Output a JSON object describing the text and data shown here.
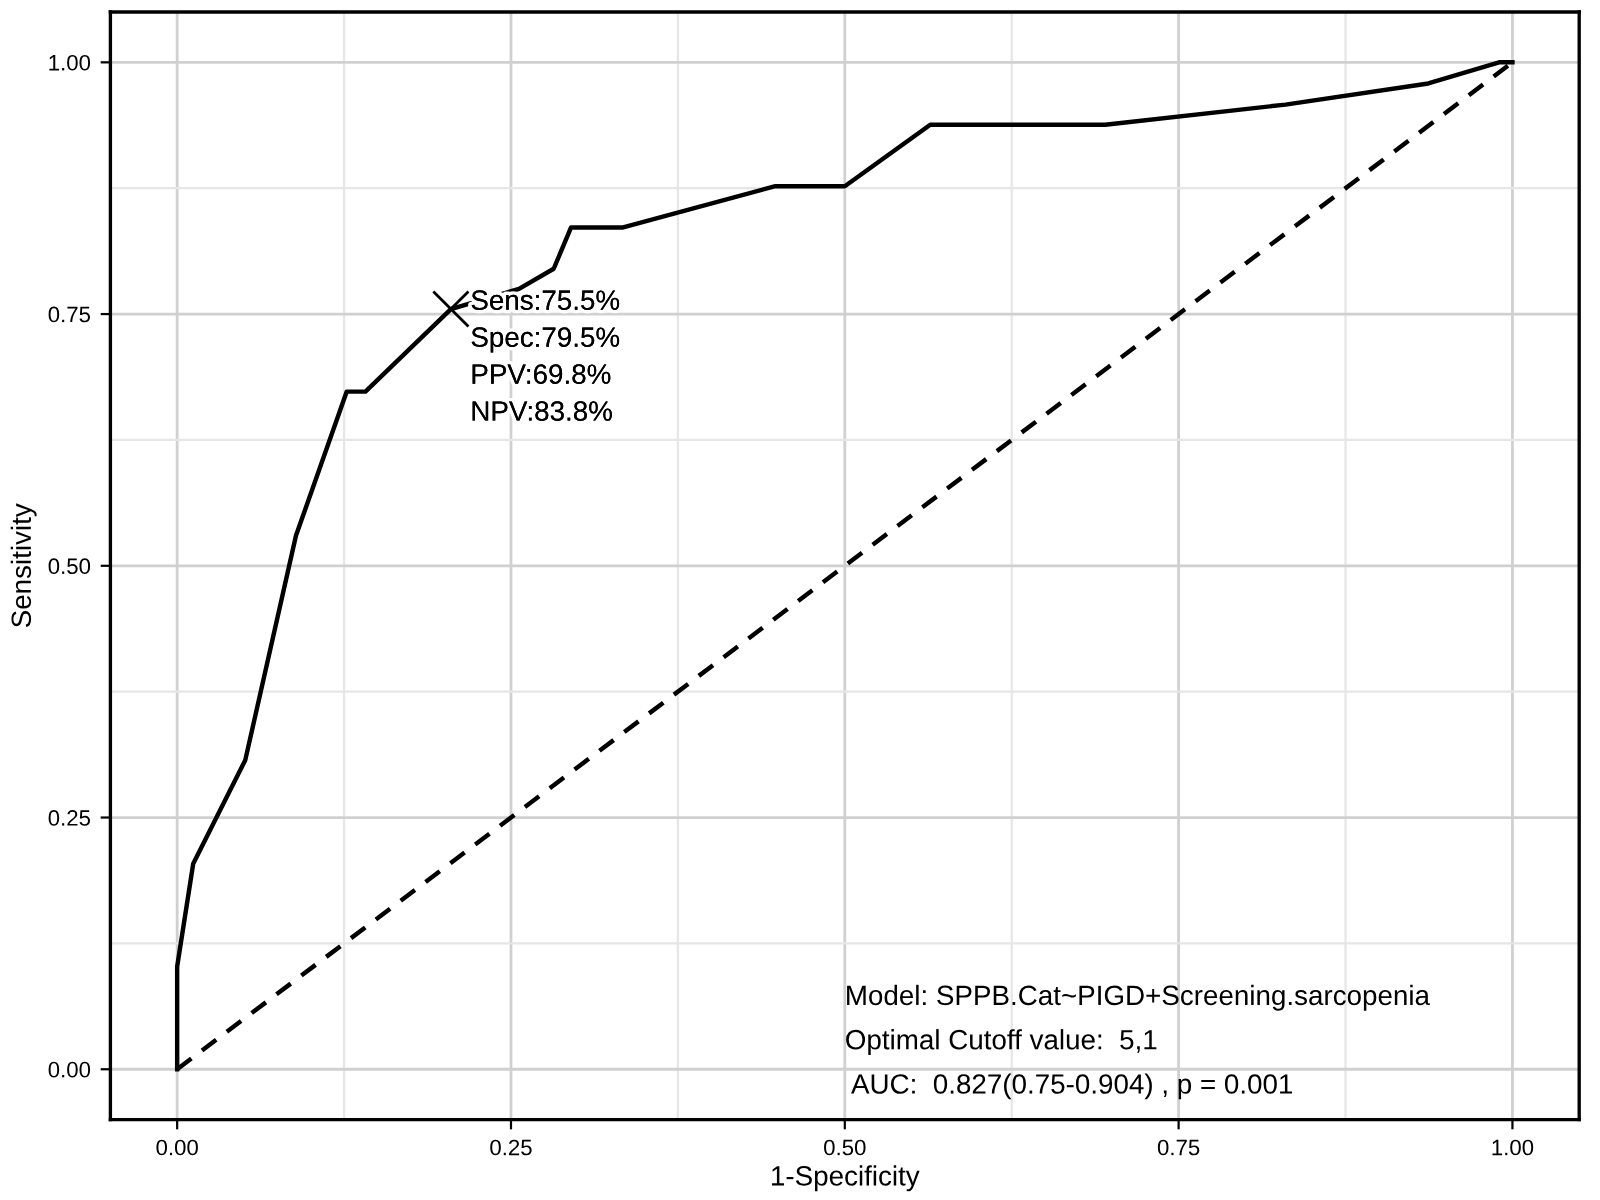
{
  "chart_data": {
    "type": "line",
    "xlabel": "1-Specificity",
    "ylabel": "Sensitivity",
    "xlim": [
      -0.05,
      1.05
    ],
    "ylim": [
      -0.05,
      1.05
    ],
    "xticks": [
      {
        "value": 0,
        "label": "0.00"
      },
      {
        "value": 0.25,
        "label": "0.25"
      },
      {
        "value": 0.5,
        "label": "0.50"
      },
      {
        "value": 0.75,
        "label": "0.75"
      },
      {
        "value": 1,
        "label": "1.00"
      }
    ],
    "yticks": [
      {
        "value": 0,
        "label": "0.00"
      },
      {
        "value": 0.25,
        "label": "0.25"
      },
      {
        "value": 0.5,
        "label": "0.50"
      },
      {
        "value": 0.75,
        "label": "0.75"
      },
      {
        "value": 1,
        "label": "1.00"
      }
    ],
    "grid": true,
    "legend": false,
    "series": [
      {
        "color": "#000000",
        "line_style": "solid",
        "x": [
          0,
          0,
          0.012,
          0.051,
          0.089,
          0.127,
          0.141,
          0.205,
          0.256,
          0.282,
          0.295,
          0.334,
          0.448,
          0.5,
          0.564,
          0.695,
          0.83,
          0.937,
          0.99,
          1
        ],
        "values": [
          0,
          0.102,
          0.204,
          0.307,
          0.53,
          0.673,
          0.673,
          0.755,
          0.775,
          0.795,
          0.836,
          0.836,
          0.877,
          0.877,
          0.938,
          0.938,
          0.958,
          0.979,
          1,
          1
        ]
      },
      {
        "color": "#000000",
        "line_style": "dashed",
        "x": [
          0,
          1
        ],
        "values": [
          0,
          1
        ]
      },
      {
        "type": "scatter",
        "color": "#000000",
        "marker": "cross",
        "x": [
          0.205
        ],
        "values": [
          0.755
        ]
      }
    ],
    "annotations": [
      {
        "text": "Sens:75.5%\nSpec:79.5%\nPPV:69.8%\nNPV:83.8%",
        "x": 0.205,
        "y": 0.755
      },
      "Model: SPPB.Cat~PIGD+Screening.sarcopenia",
      "Optimal Cutoff value:  5,1",
      " AUC:  0.827(0.75-0.904) , p = 0.001"
    ]
  }
}
